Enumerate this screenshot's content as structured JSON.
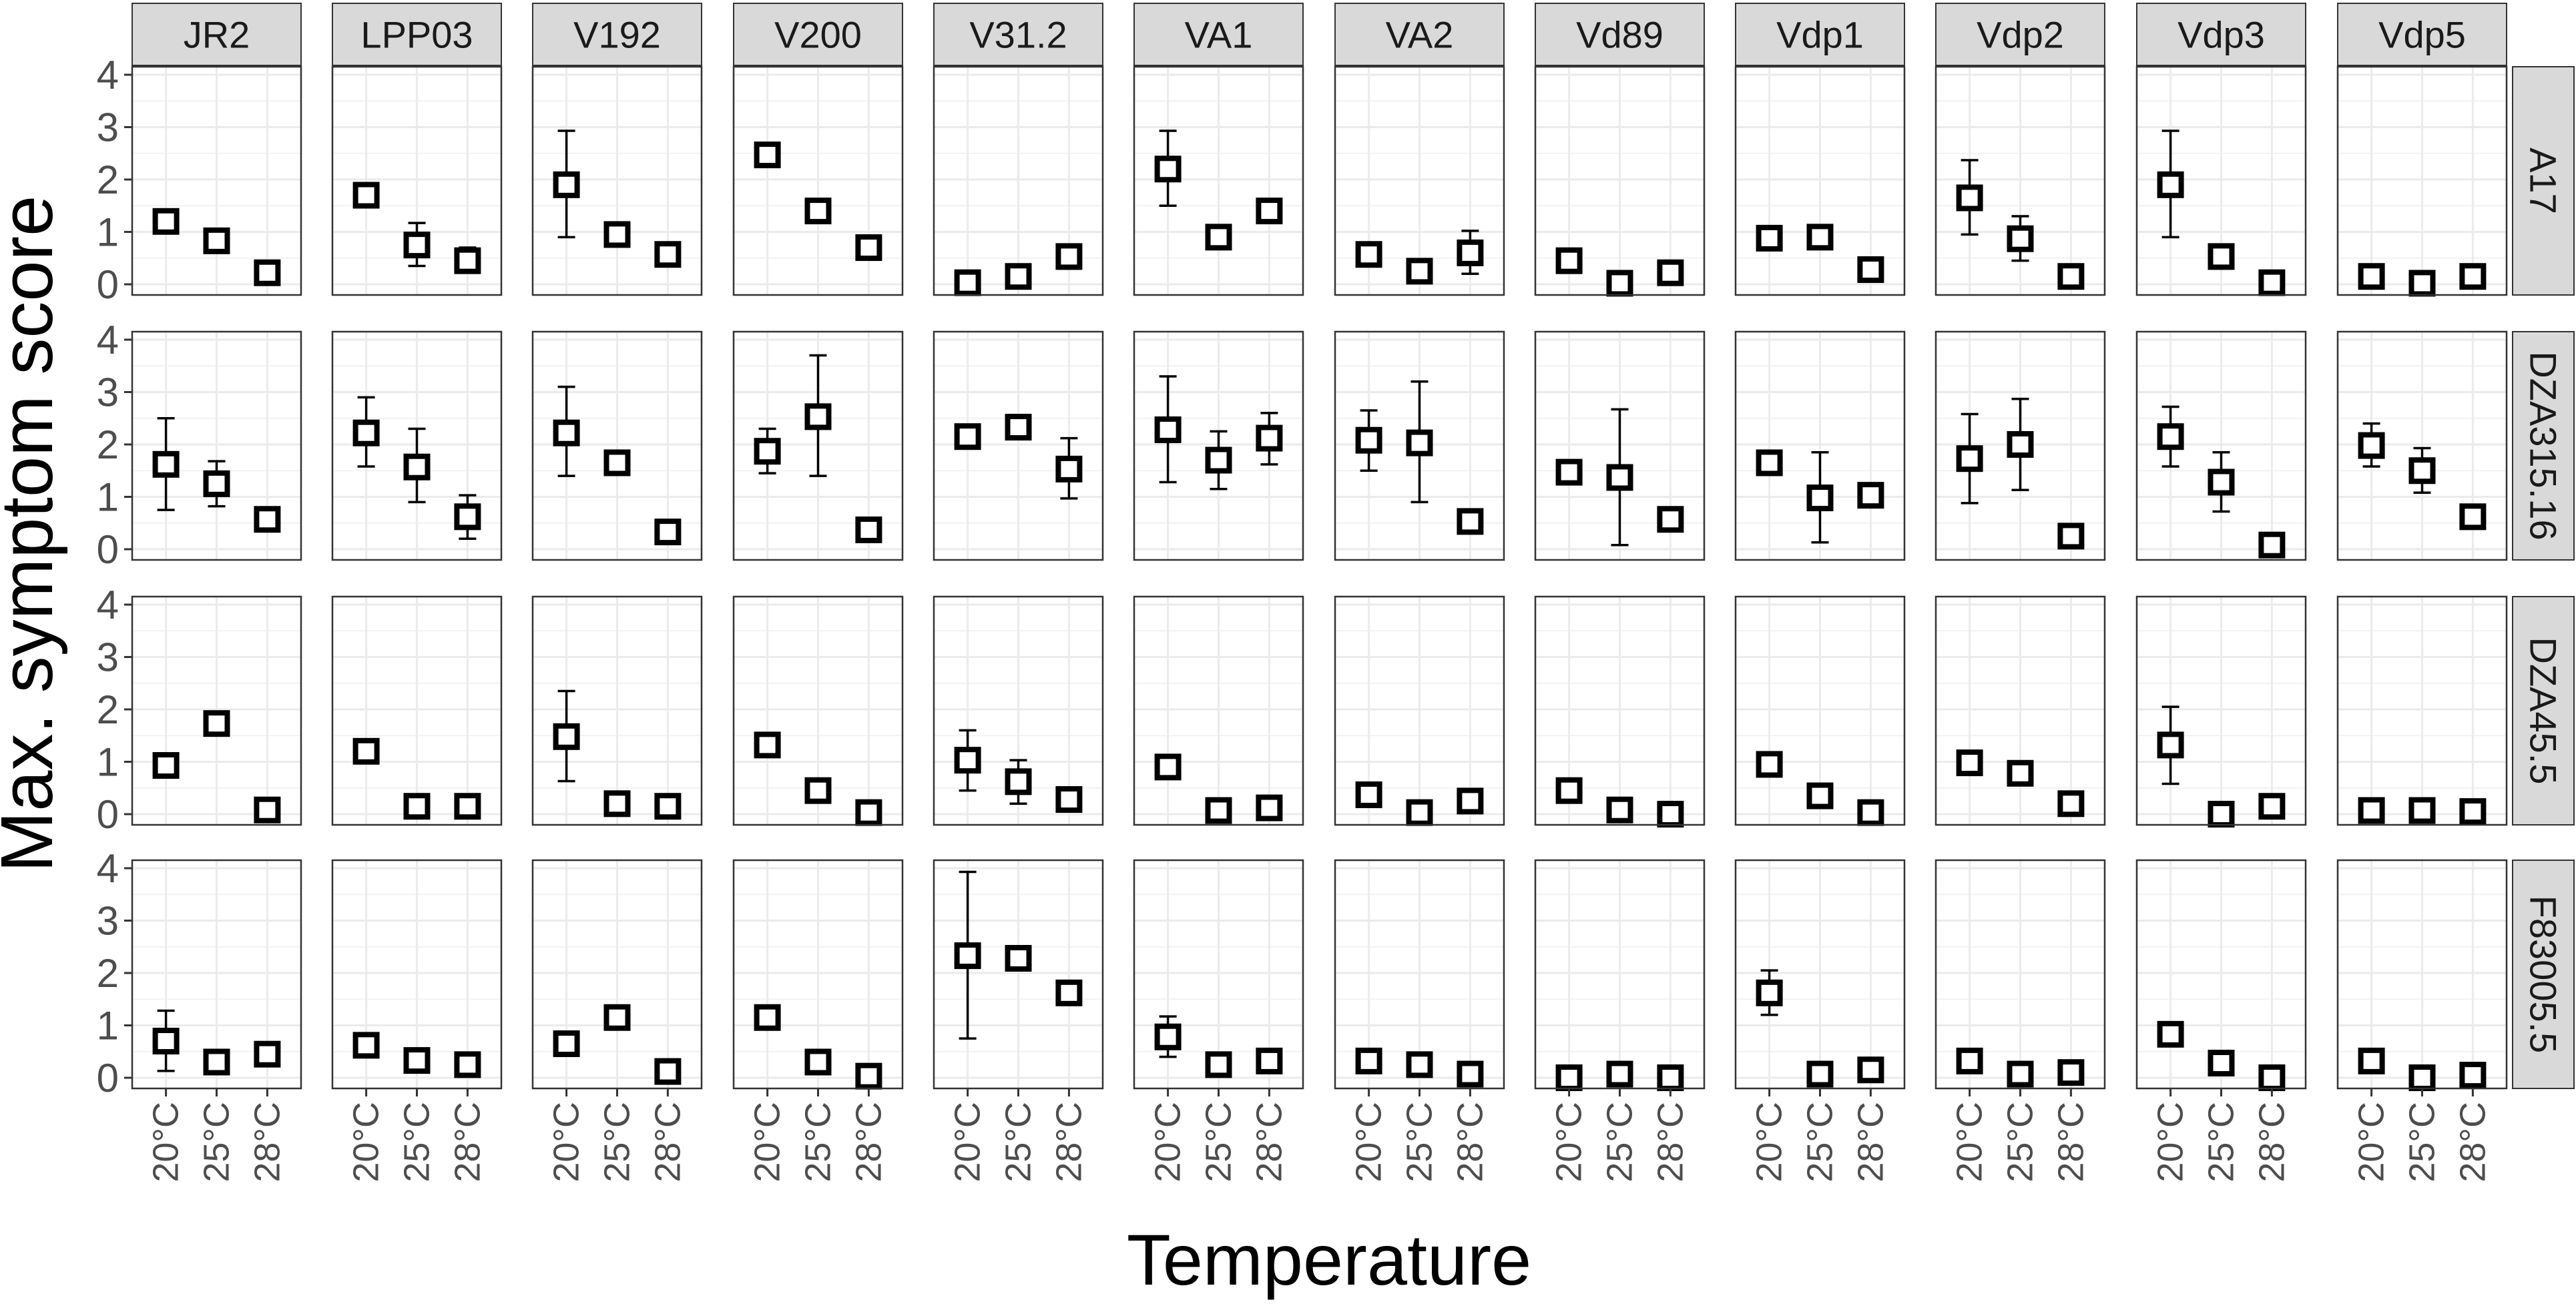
{
  "chart_data": {
    "type": "scatter",
    "subtype": "faceted point-range (mean with error bars)",
    "title": "",
    "xlabel": "Temperature",
    "ylabel": "Max. symptom score",
    "x_categories": [
      "20°C",
      "25°C",
      "28°C"
    ],
    "ylim": [
      0,
      4
    ],
    "y_ticks": [
      0,
      1,
      2,
      3,
      4
    ],
    "grid": true,
    "facet_columns": [
      "JR2",
      "LPP03",
      "V192",
      "V200",
      "V31.2",
      "VA1",
      "VA2",
      "Vd89",
      "Vdp1",
      "Vdp2",
      "Vdp3",
      "Vdp5"
    ],
    "facet_rows": [
      "A17",
      "DZA315.16",
      "DZA45.5",
      "F83005.5"
    ],
    "colors": {
      "panel_border": "#333333",
      "strip_fill": "#d9d9d9",
      "grid": "#ebebeb",
      "marker": "#000000",
      "axis_text": "#4d4d4d"
    },
    "panels": {
      "A17": {
        "JR2": [
          [
            1.2,
            1.1,
            1.3
          ],
          [
            0.83,
            0.75,
            0.9
          ],
          [
            0.22,
            0.15,
            0.3
          ]
        ],
        "LPP03": [
          [
            1.7,
            1.62,
            1.78
          ],
          [
            0.75,
            0.35,
            1.17
          ],
          [
            0.45,
            0.22,
            0.7
          ]
        ],
        "V192": [
          [
            1.9,
            0.9,
            2.93
          ],
          [
            0.95,
            0.85,
            1.05
          ],
          [
            0.57,
            0.35,
            0.8
          ]
        ],
        "V200": [
          [
            2.47,
            2.27,
            2.67
          ],
          [
            1.4,
            1.2,
            1.6
          ],
          [
            0.7,
            0.5,
            0.9
          ]
        ],
        "V31.2": [
          [
            0.03,
            0.0,
            0.08
          ],
          [
            0.15,
            0.08,
            0.22
          ],
          [
            0.53,
            0.3,
            0.75
          ]
        ],
        "VA1": [
          [
            2.2,
            1.5,
            2.93
          ],
          [
            0.9,
            0.82,
            0.98
          ],
          [
            1.4,
            1.32,
            1.48
          ]
        ],
        "VA2": [
          [
            0.57,
            0.5,
            0.65
          ],
          [
            0.25,
            0.18,
            0.32
          ],
          [
            0.6,
            0.2,
            1.02
          ]
        ],
        "Vd89": [
          [
            0.45,
            0.38,
            0.52
          ],
          [
            0.02,
            0.0,
            0.08
          ],
          [
            0.22,
            0.15,
            0.3
          ]
        ],
        "Vdp1": [
          [
            0.88,
            0.8,
            0.96
          ],
          [
            0.9,
            0.82,
            0.98
          ],
          [
            0.28,
            0.2,
            0.36
          ]
        ],
        "Vdp2": [
          [
            1.65,
            0.95,
            2.37
          ],
          [
            0.87,
            0.45,
            1.3
          ],
          [
            0.15,
            0.08,
            0.22
          ]
        ],
        "Vdp3": [
          [
            1.9,
            0.9,
            2.93
          ],
          [
            0.53,
            0.45,
            0.6
          ],
          [
            0.03,
            0.0,
            0.08
          ]
        ],
        "Vdp5": [
          [
            0.15,
            0.08,
            0.22
          ],
          [
            0.02,
            0.0,
            0.07
          ],
          [
            0.15,
            0.08,
            0.22
          ]
        ]
      },
      "DZA315.16": {
        "JR2": [
          [
            1.62,
            0.75,
            2.5
          ],
          [
            1.25,
            0.82,
            1.68
          ],
          [
            0.57,
            0.5,
            0.65
          ]
        ],
        "LPP03": [
          [
            2.22,
            1.58,
            2.9
          ],
          [
            1.57,
            0.9,
            2.3
          ],
          [
            0.62,
            0.2,
            1.03
          ]
        ],
        "V192": [
          [
            2.22,
            1.4,
            3.1
          ],
          [
            1.65,
            1.45,
            1.85
          ],
          [
            0.33,
            0.25,
            0.4
          ]
        ],
        "V200": [
          [
            1.87,
            1.45,
            2.3
          ],
          [
            2.53,
            1.4,
            3.7
          ],
          [
            0.37,
            0.3,
            0.45
          ]
        ],
        "V31.2": [
          [
            2.15,
            2.07,
            2.23
          ],
          [
            2.33,
            2.25,
            2.4
          ],
          [
            1.53,
            0.97,
            2.12
          ]
        ],
        "VA1": [
          [
            2.28,
            1.28,
            3.3
          ],
          [
            1.7,
            1.15,
            2.25
          ],
          [
            2.12,
            1.62,
            2.6
          ]
        ],
        "VA2": [
          [
            2.08,
            1.5,
            2.65
          ],
          [
            2.03,
            0.9,
            3.2
          ],
          [
            0.53,
            0.45,
            0.6
          ]
        ],
        "Vd89": [
          [
            1.47,
            1.25,
            1.68
          ],
          [
            1.37,
            0.08,
            2.67
          ],
          [
            0.57,
            0.5,
            0.65
          ]
        ],
        "Vdp1": [
          [
            1.65,
            1.45,
            1.85
          ],
          [
            0.98,
            0.13,
            1.85
          ],
          [
            1.03,
            0.82,
            1.25
          ]
        ],
        "Vdp2": [
          [
            1.73,
            0.88,
            2.58
          ],
          [
            2.0,
            1.13,
            2.87
          ],
          [
            0.25,
            0.15,
            0.35
          ]
        ],
        "Vdp3": [
          [
            2.15,
            1.58,
            2.72
          ],
          [
            1.28,
            0.72,
            1.85
          ],
          [
            0.08,
            0.0,
            0.15
          ]
        ],
        "Vdp5": [
          [
            1.98,
            1.58,
            2.4
          ],
          [
            1.5,
            1.08,
            1.93
          ],
          [
            0.62,
            0.55,
            0.7
          ]
        ]
      },
      "DZA45.5": {
        "JR2": [
          [
            0.93,
            0.86,
            1.0
          ],
          [
            1.73,
            1.66,
            1.8
          ],
          [
            0.08,
            0.0,
            0.15
          ]
        ],
        "LPP03": [
          [
            1.2,
            1.12,
            1.28
          ],
          [
            0.15,
            0.08,
            0.22
          ],
          [
            0.15,
            0.08,
            0.22
          ]
        ],
        "V192": [
          [
            1.48,
            0.63,
            2.35
          ],
          [
            0.2,
            0.13,
            0.27
          ],
          [
            0.15,
            0.08,
            0.22
          ]
        ],
        "V200": [
          [
            1.32,
            1.25,
            1.4
          ],
          [
            0.45,
            0.25,
            0.65
          ],
          [
            0.03,
            0.0,
            0.08
          ]
        ],
        "V31.2": [
          [
            1.03,
            0.45,
            1.6
          ],
          [
            0.62,
            0.2,
            1.03
          ],
          [
            0.28,
            0.2,
            0.36
          ]
        ],
        "VA1": [
          [
            0.9,
            0.82,
            0.98
          ],
          [
            0.07,
            0.0,
            0.13
          ],
          [
            0.12,
            0.05,
            0.2
          ]
        ],
        "VA2": [
          [
            0.37,
            0.3,
            0.45
          ],
          [
            0.03,
            0.0,
            0.08
          ],
          [
            0.25,
            0.18,
            0.32
          ]
        ],
        "Vd89": [
          [
            0.45,
            0.38,
            0.52
          ],
          [
            0.08,
            0.0,
            0.15
          ],
          [
            0.0,
            0.0,
            0.05
          ]
        ],
        "Vdp1": [
          [
            0.95,
            0.75,
            1.15
          ],
          [
            0.35,
            0.28,
            0.42
          ],
          [
            0.03,
            0.0,
            0.08
          ]
        ],
        "Vdp2": [
          [
            0.98,
            0.9,
            1.06
          ],
          [
            0.78,
            0.7,
            0.86
          ],
          [
            0.2,
            0.13,
            0.27
          ]
        ],
        "Vdp3": [
          [
            1.32,
            0.58,
            2.05
          ],
          [
            0.0,
            0.0,
            0.05
          ],
          [
            0.15,
            0.08,
            0.22
          ]
        ],
        "Vdp5": [
          [
            0.07,
            0.0,
            0.13
          ],
          [
            0.07,
            0.0,
            0.13
          ],
          [
            0.05,
            0.0,
            0.1
          ]
        ]
      },
      "F83005.5": {
        "JR2": [
          [
            0.7,
            0.13,
            1.28
          ],
          [
            0.3,
            0.1,
            0.5
          ],
          [
            0.45,
            0.38,
            0.52
          ]
        ],
        "LPP03": [
          [
            0.62,
            0.45,
            0.8
          ],
          [
            0.33,
            0.13,
            0.53
          ],
          [
            0.25,
            0.18,
            0.32
          ]
        ],
        "V192": [
          [
            0.65,
            0.58,
            0.72
          ],
          [
            1.15,
            0.95,
            1.35
          ],
          [
            0.12,
            0.05,
            0.2
          ]
        ],
        "V200": [
          [
            1.15,
            1.08,
            1.22
          ],
          [
            0.3,
            0.1,
            0.5
          ],
          [
            0.03,
            0.0,
            0.08
          ]
        ],
        "V31.2": [
          [
            2.33,
            0.75,
            3.93
          ],
          [
            2.28,
            2.2,
            2.36
          ],
          [
            1.62,
            1.55,
            1.7
          ]
        ],
        "VA1": [
          [
            0.78,
            0.4,
            1.17
          ],
          [
            0.25,
            0.18,
            0.32
          ],
          [
            0.32,
            0.25,
            0.4
          ]
        ],
        "VA2": [
          [
            0.32,
            0.25,
            0.4
          ],
          [
            0.25,
            0.18,
            0.32
          ],
          [
            0.07,
            0.0,
            0.13
          ]
        ],
        "Vd89": [
          [
            0.0,
            0.0,
            0.05
          ],
          [
            0.07,
            0.0,
            0.13
          ],
          [
            0.0,
            0.0,
            0.05
          ]
        ],
        "Vdp1": [
          [
            1.62,
            1.2,
            2.05
          ],
          [
            0.07,
            0.0,
            0.13
          ],
          [
            0.15,
            0.08,
            0.22
          ]
        ],
        "Vdp2": [
          [
            0.32,
            0.25,
            0.4
          ],
          [
            0.07,
            0.0,
            0.13
          ],
          [
            0.1,
            0.03,
            0.17
          ]
        ],
        "Vdp3": [
          [
            0.83,
            0.75,
            0.9
          ],
          [
            0.28,
            0.1,
            0.48
          ],
          [
            0.0,
            0.0,
            0.05
          ]
        ],
        "Vdp5": [
          [
            0.32,
            0.25,
            0.4
          ],
          [
            0.0,
            0.0,
            0.05
          ],
          [
            0.05,
            0.0,
            0.1
          ]
        ]
      }
    },
    "panel_value_format": "[mean, lower, upper] per temperature in x_categories order"
  }
}
